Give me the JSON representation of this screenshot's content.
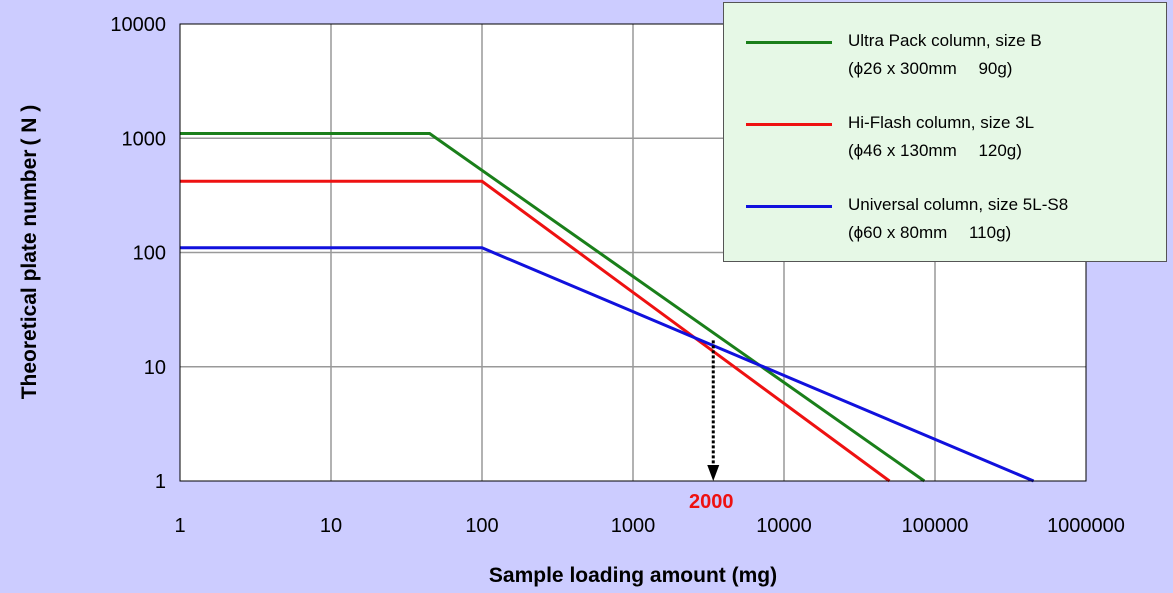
{
  "chart_data": {
    "type": "line",
    "xlabel": "Sample loading amount (mg)",
    "ylabel": "Theoretical plate number",
    "ylabel_symbol": "( N )",
    "xscale": "log",
    "yscale": "log",
    "xlim": [
      1,
      1000000
    ],
    "ylim": [
      1,
      10000
    ],
    "x_ticks": [
      "1",
      "10",
      "100",
      "1000",
      "10000",
      "100000",
      "1000000"
    ],
    "y_ticks": [
      "1",
      "10",
      "100",
      "1000",
      "10000"
    ],
    "grid": true,
    "legend_position": "top-right",
    "series": [
      {
        "name": "Ultra Pack column, size B",
        "spec": "(ϕ26 x 300mm　 90g)",
        "color": "#1a7f1a",
        "points": [
          [
            1,
            1100
          ],
          [
            45,
            1100
          ],
          [
            85000,
            1
          ]
        ]
      },
      {
        "name": "Hi-Flash column, size 3L",
        "spec": "(ϕ46 x 130mm　 120g)",
        "color": "#ee1111",
        "points": [
          [
            1,
            420
          ],
          [
            100,
            420
          ],
          [
            50000,
            1
          ]
        ]
      },
      {
        "name": "Universal column, size 5L-S8",
        "spec": "(ϕ60 x 80mm　 110g)",
        "color": "#1111dd",
        "points": [
          [
            1,
            110
          ],
          [
            100,
            110
          ],
          [
            450000,
            1
          ]
        ]
      }
    ],
    "annotations": [
      {
        "text": "2000",
        "color": "#ee1111",
        "from": [
          3400,
          17
        ],
        "to": [
          3400,
          1
        ]
      }
    ]
  }
}
